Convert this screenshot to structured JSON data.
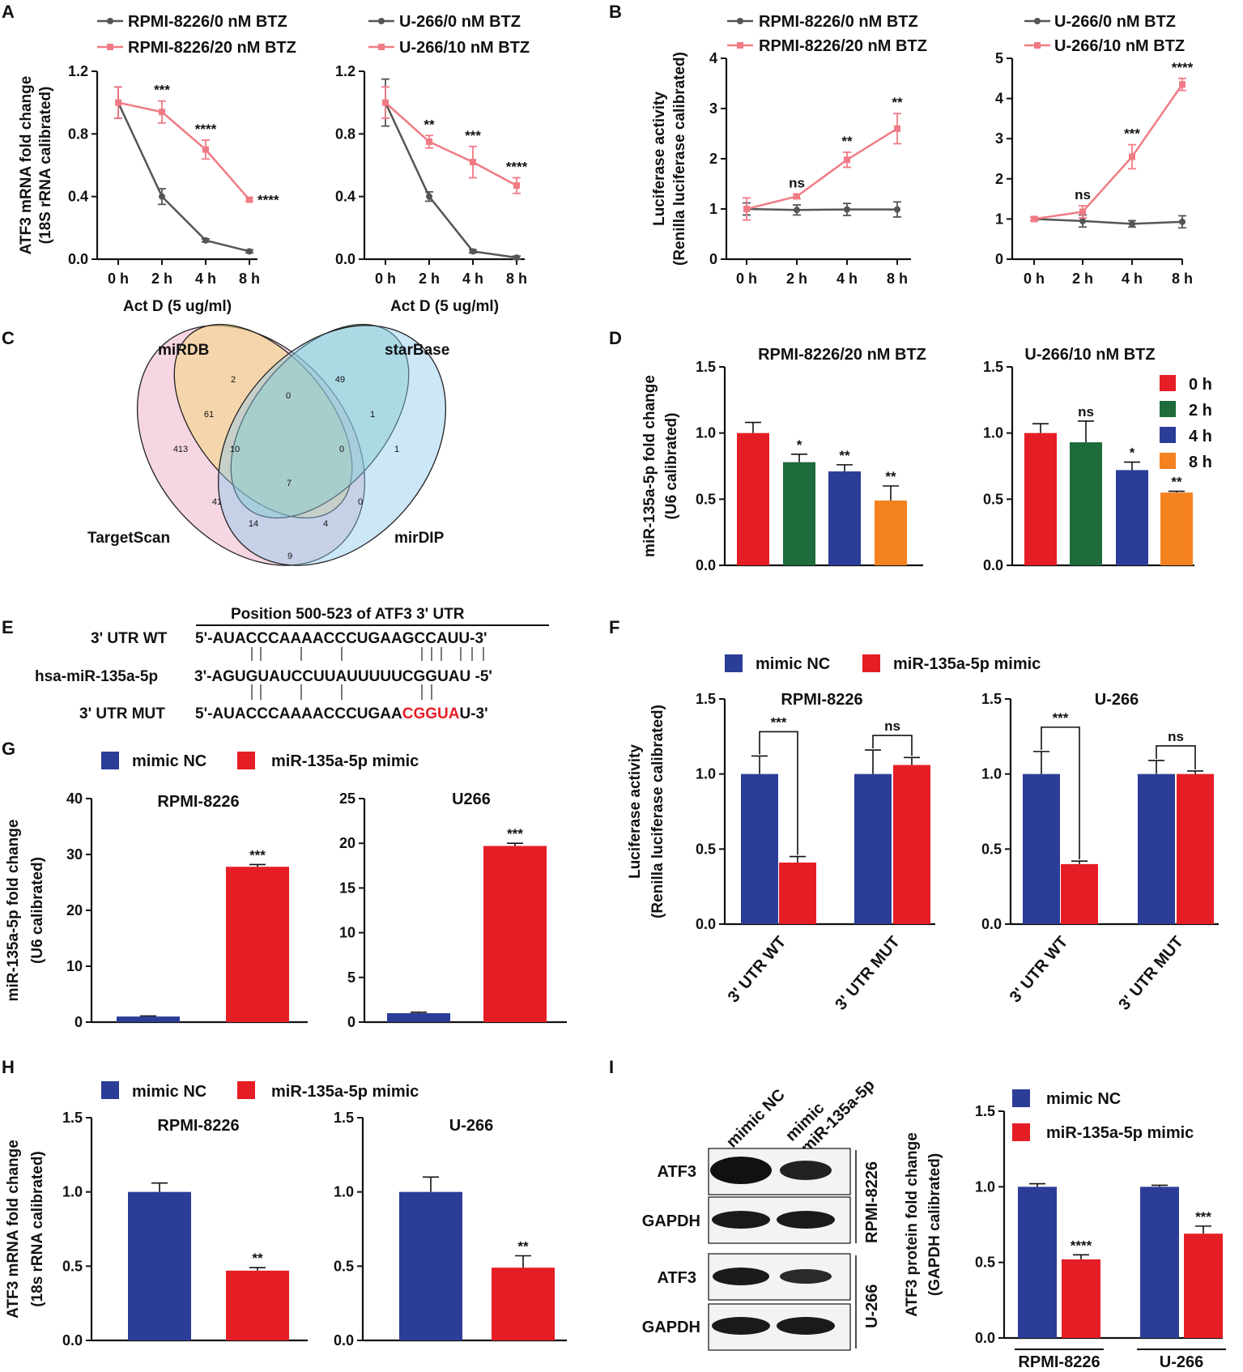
{
  "colors": {
    "grey": "#555555",
    "pink": "#f07b85",
    "red": "#e51e25",
    "green": "#1e6b3b",
    "blue": "#2c3d98",
    "orange": "#f58220",
    "text": "#111111"
  },
  "panels": [
    "A",
    "B",
    "C",
    "D",
    "E",
    "F",
    "G",
    "H",
    "I"
  ],
  "chart_data": [
    {
      "id": "A1",
      "type": "line",
      "panel": "A",
      "categories": [
        "0 h",
        "2 h",
        "4 h",
        "8 h"
      ],
      "ylabel": "ATF3 mRNA fold change",
      "ylabel2": "(18S rRNA calibrated)",
      "xlabel": "Act D (5 ug/ml)",
      "ylim": [
        0,
        1.2
      ],
      "yticks": [
        "0.0",
        "0.4",
        "0.8",
        "1.2"
      ],
      "series": [
        {
          "name": "RPMI-8226/0 nM BTZ",
          "color": "grey",
          "values": [
            1.0,
            0.4,
            0.12,
            0.05
          ],
          "err": [
            0.1,
            0.05,
            0.01,
            0.01
          ]
        },
        {
          "name": "RPMI-8226/20 nM BTZ",
          "color": "pink",
          "values": [
            1.0,
            0.94,
            0.7,
            0.38
          ],
          "err": [
            0.1,
            0.07,
            0.06,
            0.01
          ]
        }
      ],
      "sig": [
        "",
        "***",
        "****",
        "****"
      ]
    },
    {
      "id": "A2",
      "type": "line",
      "panel": "A",
      "categories": [
        "0 h",
        "2 h",
        "4 h",
        "8 h"
      ],
      "ylabel": "",
      "ylabel2": "",
      "xlabel": "Act D (5 ug/ml)",
      "ylim": [
        0,
        1.2
      ],
      "yticks": [
        "0.0",
        "0.4",
        "0.8",
        "1.2"
      ],
      "series": [
        {
          "name": "U-266/0 nM BTZ",
          "color": "grey",
          "values": [
            1.0,
            0.4,
            0.05,
            0.01
          ],
          "err": [
            0.15,
            0.03,
            0.01,
            0.01
          ]
        },
        {
          "name": "U-266/10 nM BTZ",
          "color": "pink",
          "values": [
            1.0,
            0.75,
            0.62,
            0.47
          ],
          "err": [
            0.1,
            0.04,
            0.1,
            0.05
          ]
        }
      ],
      "sig": [
        "",
        "**",
        "***",
        "****"
      ]
    },
    {
      "id": "B1",
      "type": "line",
      "panel": "B",
      "categories": [
        "0 h",
        "2 h",
        "4 h",
        "8 h"
      ],
      "ylabel": "Luciferase activity",
      "ylabel2": "(Renilla luciferase calibrated)",
      "xlabel": "",
      "ylim": [
        0,
        4
      ],
      "yticks": [
        "0",
        "1",
        "2",
        "3",
        "4"
      ],
      "series": [
        {
          "name": "RPMI-8226/0 nM BTZ",
          "color": "grey",
          "values": [
            1.0,
            0.98,
            0.99,
            0.99
          ],
          "err": [
            0.12,
            0.1,
            0.12,
            0.15
          ]
        },
        {
          "name": "RPMI-8226/20 nM BTZ",
          "color": "pink",
          "values": [
            1.0,
            1.25,
            1.98,
            2.6
          ],
          "err": [
            0.22,
            0.05,
            0.15,
            0.3
          ]
        }
      ],
      "sig": [
        "",
        "ns",
        "**",
        "**"
      ]
    },
    {
      "id": "B2",
      "type": "line",
      "panel": "B",
      "categories": [
        "0 h",
        "2 h",
        "4 h",
        "8 h"
      ],
      "ylabel": "",
      "ylabel2": "",
      "xlabel": "",
      "ylim": [
        0,
        5
      ],
      "yticks": [
        "0",
        "1",
        "2",
        "3",
        "4",
        "5"
      ],
      "series": [
        {
          "name": "U-266/0 nM BTZ",
          "color": "grey",
          "values": [
            1.0,
            0.95,
            0.88,
            0.93
          ],
          "err": [
            0.05,
            0.15,
            0.08,
            0.15
          ]
        },
        {
          "name": "U-266/10 nM BTZ",
          "color": "pink",
          "values": [
            1.0,
            1.18,
            2.55,
            4.35
          ],
          "err": [
            0.05,
            0.15,
            0.3,
            0.15
          ]
        }
      ],
      "sig": [
        "",
        "ns",
        "***",
        "****"
      ]
    },
    {
      "id": "D1",
      "type": "bar",
      "panel": "D",
      "title": "RPMI-8226/20 nM BTZ",
      "ylabel": "miR-135a-5p fold change",
      "ylabel2": "(U6 calibrated)",
      "ylim": [
        0,
        1.5
      ],
      "yticks": [
        "0.0",
        "0.5",
        "1.0",
        "1.5"
      ],
      "categories": [
        "0 h",
        "2 h",
        "4 h",
        "8 h"
      ],
      "values": [
        1.0,
        0.78,
        0.71,
        0.49
      ],
      "err": [
        0.08,
        0.06,
        0.05,
        0.11
      ],
      "colors": [
        "red",
        "green",
        "blue",
        "orange"
      ],
      "sig": [
        "",
        "*",
        "**",
        "**"
      ]
    },
    {
      "id": "D2",
      "type": "bar",
      "panel": "D",
      "title": "U-266/10 nM BTZ",
      "ylabel": "",
      "ylabel2": "",
      "ylim": [
        0,
        1.5
      ],
      "yticks": [
        "0.0",
        "0.5",
        "1.0",
        "1.5"
      ],
      "categories": [
        "0 h",
        "2 h",
        "4 h",
        "8 h"
      ],
      "values": [
        1.0,
        0.93,
        0.72,
        0.55
      ],
      "err": [
        0.07,
        0.16,
        0.06,
        0.01
      ],
      "colors": [
        "red",
        "green",
        "blue",
        "orange"
      ],
      "sig": [
        "",
        "ns",
        "*",
        "**"
      ]
    },
    {
      "id": "F1",
      "type": "bar",
      "panel": "F",
      "title": "RPMI-8226",
      "ylabel": "Luciferase activity",
      "ylabel2": "(Renilla luciferase calibrated)",
      "ylim": [
        0,
        1.5
      ],
      "yticks": [
        "0.0",
        "0.5",
        "1.0",
        "1.5"
      ],
      "categories": [
        "3' UTR WT",
        "3' UTR MUT"
      ],
      "series": [
        {
          "name": "mimic NC",
          "color": "blue",
          "values": [
            1.0,
            1.0
          ],
          "err": [
            0.12,
            0.16
          ]
        },
        {
          "name": "miR-135a-5p mimic",
          "color": "red",
          "values": [
            0.41,
            1.06
          ],
          "err": [
            0.04,
            0.05
          ]
        }
      ],
      "sig": [
        "***",
        "ns"
      ]
    },
    {
      "id": "F2",
      "type": "bar",
      "panel": "F",
      "title": "U-266",
      "ylabel": "",
      "ylabel2": "",
      "ylim": [
        0,
        1.5
      ],
      "yticks": [
        "0.0",
        "0.5",
        "1.0",
        "1.5"
      ],
      "categories": [
        "3' UTR WT",
        "3' UTR MUT"
      ],
      "series": [
        {
          "name": "mimic NC",
          "color": "blue",
          "values": [
            1.0,
            1.0
          ],
          "err": [
            0.15,
            0.09
          ]
        },
        {
          "name": "miR-135a-5p mimic",
          "color": "red",
          "values": [
            0.4,
            1.0
          ],
          "err": [
            0.02,
            0.02
          ]
        }
      ],
      "sig": [
        "***",
        "ns"
      ]
    },
    {
      "id": "G1",
      "type": "bar",
      "panel": "G",
      "title": "RPMI-8226",
      "ylabel": "miR-135a-5p fold change",
      "ylabel2": "(U6 calibrated)",
      "ylim": [
        0,
        40
      ],
      "yticks": [
        "0",
        "10",
        "20",
        "30",
        "40"
      ],
      "categories": [
        "mimic NC",
        "miR-135a-5p mimic"
      ],
      "values": [
        1.0,
        27.8
      ],
      "err": [
        0.1,
        0.4
      ],
      "colors": [
        "blue",
        "red"
      ],
      "sig": [
        "",
        "***"
      ]
    },
    {
      "id": "G2",
      "type": "bar",
      "panel": "G",
      "title": "U266",
      "ylabel": "",
      "ylabel2": "",
      "ylim": [
        0,
        25
      ],
      "yticks": [
        "0",
        "5",
        "10",
        "15",
        "20",
        "25"
      ],
      "categories": [
        "mimic NC",
        "miR-135a-5p mimic"
      ],
      "values": [
        1.0,
        19.7
      ],
      "err": [
        0.1,
        0.3
      ],
      "colors": [
        "blue",
        "red"
      ],
      "sig": [
        "",
        "***"
      ]
    },
    {
      "id": "H1",
      "type": "bar",
      "panel": "H",
      "title": "RPMI-8226",
      "ylabel": "ATF3 mRNA fold change",
      "ylabel2": "(18s rRNA calibrated)",
      "ylim": [
        0,
        1.5
      ],
      "yticks": [
        "0.0",
        "0.5",
        "1.0",
        "1.5"
      ],
      "categories": [
        "mimic NC",
        "miR-135a-5p mimic"
      ],
      "values": [
        1.0,
        0.47
      ],
      "err": [
        0.06,
        0.02
      ],
      "colors": [
        "blue",
        "red"
      ],
      "sig": [
        "",
        "**"
      ]
    },
    {
      "id": "H2",
      "type": "bar",
      "panel": "H",
      "title": "U-266",
      "ylabel": "",
      "ylabel2": "",
      "ylim": [
        0,
        1.5
      ],
      "yticks": [
        "0.0",
        "0.5",
        "1.0",
        "1.5"
      ],
      "categories": [
        "mimic NC",
        "miR-135a-5p mimic"
      ],
      "values": [
        1.0,
        0.49
      ],
      "err": [
        0.1,
        0.08
      ],
      "colors": [
        "blue",
        "red"
      ],
      "sig": [
        "",
        "**"
      ]
    },
    {
      "id": "I1",
      "type": "bar",
      "panel": "I",
      "title": "",
      "ylabel": "ATF3 protein fold change",
      "ylabel2": "(GAPDH calibrated)",
      "ylim": [
        0,
        1.5
      ],
      "yticks": [
        "0.0",
        "0.5",
        "1.0",
        "1.5"
      ],
      "categories": [
        "RPMI-8226",
        "U-266"
      ],
      "series": [
        {
          "name": "mimic NC",
          "color": "blue",
          "values": [
            1.0,
            1.0
          ],
          "err": [
            0.02,
            0.01
          ]
        },
        {
          "name": "miR-135a-5p mimic",
          "color": "red",
          "values": [
            0.52,
            0.69
          ],
          "err": [
            0.03,
            0.05
          ]
        }
      ],
      "sig": [
        "****",
        "***"
      ]
    }
  ],
  "legendA1": [
    "RPMI-8226/0 nM BTZ",
    "RPMI-8226/20 nM BTZ"
  ],
  "legendA2": [
    "U-266/0 nM BTZ",
    "U-266/10 nM BTZ"
  ],
  "legendD": [
    "0 h",
    "2 h",
    "4 h",
    "8 h"
  ],
  "legendMimic": [
    "mimic NC",
    "miR-135a-5p mimic"
  ],
  "venn": {
    "labels": [
      "miRDB",
      "starBase",
      "TargetScan",
      "mirDIP"
    ],
    "counts": [
      "2",
      "49",
      "0",
      "1",
      "61",
      "413",
      "10",
      "0",
      "1",
      "7",
      "41",
      "0",
      "14",
      "4",
      "9"
    ]
  },
  "seq": {
    "title": "Position 500-523 of ATF3 3' UTR",
    "wt_label": "3' UTR WT",
    "wt": "5'-AUACCCAAAACCCUGAAGCCAUU-3'",
    "mir_label": "hsa-miR-135a-5p",
    "mir": "3'-AGUGUAUCCUUAUUUUUCGGUAU -5'",
    "mut_label": "3' UTR MUT",
    "mut_prefix": "5'-AUACCCAAAACCCUGAA",
    "mut_red": "CGGUA",
    "mut_suffix": "U-3'"
  },
  "blot": {
    "lanes": [
      "mimic NC",
      "mimic",
      "miR-135a-5p"
    ],
    "rows": [
      "ATF3",
      "GAPDH",
      "ATF3",
      "GAPDH"
    ],
    "cells": [
      "RPMI-8226",
      "U-266"
    ]
  }
}
